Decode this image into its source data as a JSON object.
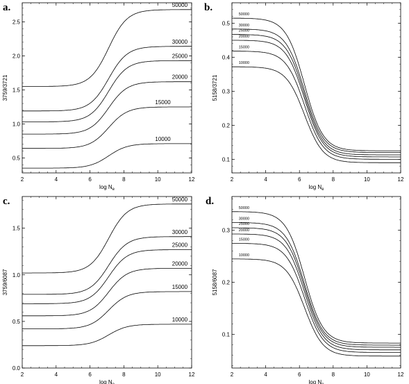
{
  "panels": [
    {
      "letter": "a."
    },
    {
      "letter": "b."
    },
    {
      "letter": "c."
    },
    {
      "letter": "d."
    }
  ],
  "chart_data": [
    {
      "type": "line",
      "panel": "a.",
      "xlabel": "log N",
      "xlabel_sub": "e",
      "ylabel": "3759/3721",
      "xlim": [
        2,
        12
      ],
      "ylim": [
        0.28,
        2.78
      ],
      "xticks": [
        2,
        4,
        6,
        8,
        10,
        12
      ],
      "yticks": [
        0.5,
        1.0,
        1.5,
        2.0,
        2.5
      ],
      "ytick_labels": [
        "0.5",
        "1.0",
        "1.5",
        "2.0",
        "2.5"
      ],
      "grid": false,
      "legend": "inline labels",
      "shape": "rise",
      "center": 7.1,
      "width": 0.55,
      "series": [
        {
          "name": "50000",
          "low": 1.55,
          "high": 2.68,
          "label_x": 11.3
        },
        {
          "name": "30000",
          "low": 1.19,
          "high": 2.14,
          "label_x": 11.3
        },
        {
          "name": "25000",
          "low": 1.03,
          "high": 1.93,
          "label_x": 11.3
        },
        {
          "name": "20000",
          "low": 0.85,
          "high": 1.62,
          "label_x": 11.3
        },
        {
          "name": "15000",
          "low": 0.64,
          "high": 1.25,
          "label_x": 10.3
        },
        {
          "name": "10000",
          "low": 0.35,
          "high": 0.71,
          "label_x": 10.3
        }
      ]
    },
    {
      "type": "line",
      "panel": "b.",
      "xlabel": "log N",
      "xlabel_sub": "e",
      "ylabel": "5158/3721",
      "xlim": [
        2,
        12
      ],
      "ylim": [
        0.06,
        0.56
      ],
      "xticks": [
        2,
        4,
        6,
        8,
        10,
        12
      ],
      "yticks": [
        0.1,
        0.2,
        0.3,
        0.4,
        0.5
      ],
      "ytick_labels": [
        "0.1",
        "0.2",
        "0.3",
        "0.4",
        "0.5"
      ],
      "grid": false,
      "legend": "inline labels",
      "shape": "fall",
      "center": 6.3,
      "width": 0.55,
      "series": [
        {
          "name": "50000",
          "low": 0.125,
          "high": 0.515,
          "label_x": 2.4
        },
        {
          "name": "30000",
          "low": 0.12,
          "high": 0.483,
          "label_x": 2.4
        },
        {
          "name": "25000",
          "low": 0.113,
          "high": 0.467,
          "label_x": 2.4
        },
        {
          "name": "20000",
          "low": 0.107,
          "high": 0.45,
          "label_x": 2.4
        },
        {
          "name": "15000",
          "low": 0.1,
          "high": 0.418,
          "label_x": 2.4
        },
        {
          "name": "10000",
          "low": 0.09,
          "high": 0.372,
          "label_x": 2.4
        }
      ]
    },
    {
      "type": "line",
      "panel": "c.",
      "xlabel": "log N",
      "xlabel_sub": "e",
      "ylabel": "3759/6087",
      "xlim": [
        2,
        12
      ],
      "ylim": [
        0.0,
        1.84
      ],
      "xticks": [
        2,
        4,
        6,
        8,
        10,
        12
      ],
      "yticks": [
        0.0,
        0.5,
        1.0,
        1.5
      ],
      "ytick_labels": [
        "0.0",
        "0.5",
        "1.0",
        "1.5"
      ],
      "grid": false,
      "legend": "inline labels",
      "shape": "rise",
      "center": 7.1,
      "width": 0.55,
      "series": [
        {
          "name": "50000",
          "low": 1.02,
          "high": 1.76,
          "label_x": 11.3
        },
        {
          "name": "30000",
          "low": 0.79,
          "high": 1.41,
          "label_x": 11.3
        },
        {
          "name": "25000",
          "low": 0.69,
          "high": 1.27,
          "label_x": 11.3
        },
        {
          "name": "20000",
          "low": 0.56,
          "high": 1.07,
          "label_x": 11.3
        },
        {
          "name": "15000",
          "low": 0.42,
          "high": 0.82,
          "label_x": 11.3
        },
        {
          "name": "10000",
          "low": 0.24,
          "high": 0.47,
          "label_x": 11.3
        }
      ]
    },
    {
      "type": "line",
      "panel": "d.",
      "xlabel": "log N",
      "xlabel_sub": "e",
      "ylabel": "5158/6087",
      "xlim": [
        2,
        12
      ],
      "ylim": [
        0.035,
        0.365
      ],
      "xticks": [
        2,
        4,
        6,
        8,
        10,
        12
      ],
      "yticks": [
        0.1,
        0.2,
        0.3
      ],
      "ytick_labels": [
        "0.1",
        "0.2",
        "0.3"
      ],
      "grid": false,
      "legend": "inline labels",
      "shape": "fall",
      "center": 6.3,
      "width": 0.55,
      "series": [
        {
          "name": "50000",
          "low": 0.083,
          "high": 0.336,
          "label_x": 2.4
        },
        {
          "name": "30000",
          "low": 0.079,
          "high": 0.315,
          "label_x": 2.4
        },
        {
          "name": "25000",
          "low": 0.075,
          "high": 0.305,
          "label_x": 2.4
        },
        {
          "name": "20000",
          "low": 0.07,
          "high": 0.293,
          "label_x": 2.4
        },
        {
          "name": "15000",
          "low": 0.065,
          "high": 0.275,
          "label_x": 2.4
        },
        {
          "name": "10000",
          "low": 0.058,
          "high": 0.245,
          "label_x": 2.4
        }
      ]
    }
  ]
}
